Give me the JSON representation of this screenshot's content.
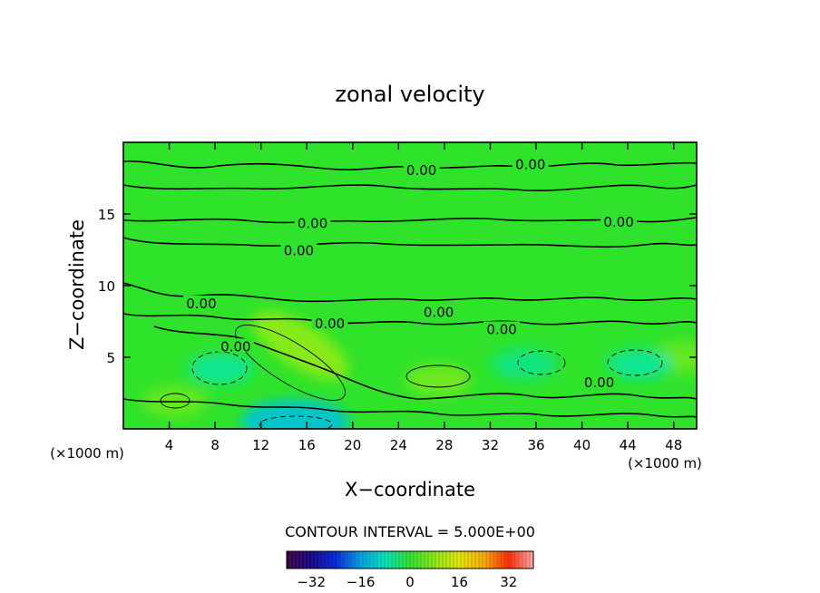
{
  "chart_data": {
    "type": "heatmap",
    "title": "zonal velocity",
    "xlabel": "X−coordinate",
    "ylabel": "Z−coordinate",
    "x_unit": "(×1000 m)",
    "y_unit": "(×1000 m)",
    "xlim": [
      0,
      50
    ],
    "ylim": [
      0,
      20
    ],
    "xticks": [
      4,
      8,
      12,
      16,
      20,
      24,
      28,
      32,
      36,
      40,
      44,
      48
    ],
    "yticks": [
      5,
      10,
      15
    ],
    "xtick_labels": [
      "4",
      "8",
      "12",
      "16",
      "20",
      "24",
      "28",
      "32",
      "36",
      "40",
      "44",
      "48"
    ],
    "ytick_labels": [
      "5",
      "10",
      "15"
    ],
    "contour_interval_text": "CONTOUR INTERVAL = 5.000E+00",
    "contour_interval": 5.0,
    "contour_labels": [
      {
        "text": "0.00",
        "x": 26.0,
        "y": 18.1
      },
      {
        "text": "0.00",
        "x": 35.5,
        "y": 18.5
      },
      {
        "text": "0.00",
        "x": 16.5,
        "y": 14.4
      },
      {
        "text": "0.00",
        "x": 43.2,
        "y": 14.5
      },
      {
        "text": "0.00",
        "x": 15.3,
        "y": 12.5
      },
      {
        "text": "0.00",
        "x": 6.8,
        "y": 8.8
      },
      {
        "text": "0.00",
        "x": 18.0,
        "y": 7.4
      },
      {
        "text": "0.00",
        "x": 27.5,
        "y": 8.2
      },
      {
        "text": "0.00",
        "x": 33.0,
        "y": 7.0
      },
      {
        "text": "0.00",
        "x": 9.8,
        "y": 5.8
      },
      {
        "text": "0.00",
        "x": 41.5,
        "y": 3.3
      }
    ],
    "colorbar": {
      "min": -40,
      "max": 40,
      "tick_values": [
        -32,
        -16,
        0,
        16,
        32
      ],
      "tick_labels": [
        "−32",
        "−16",
        "0",
        "16",
        "32"
      ]
    },
    "dominant_value": 0,
    "features": [
      {
        "kind": "positive",
        "x": 15.5,
        "y": 5.8,
        "peak": 8
      },
      {
        "kind": "positive",
        "x": 27.5,
        "y": 3.4,
        "peak": 6
      },
      {
        "kind": "positive",
        "x": 4.5,
        "y": 1.9,
        "peak": 5
      },
      {
        "kind": "positive",
        "x": 49.0,
        "y": 5.0,
        "peak": 5
      },
      {
        "kind": "negative",
        "x": 8.5,
        "y": 4.2,
        "peak": -6
      },
      {
        "kind": "negative",
        "x": 35.0,
        "y": 4.5,
        "peak": -5
      },
      {
        "kind": "negative",
        "x": 45.0,
        "y": 4.5,
        "peak": -6
      },
      {
        "kind": "negative",
        "x": 15.0,
        "y": 0.5,
        "peak": -12
      }
    ]
  }
}
